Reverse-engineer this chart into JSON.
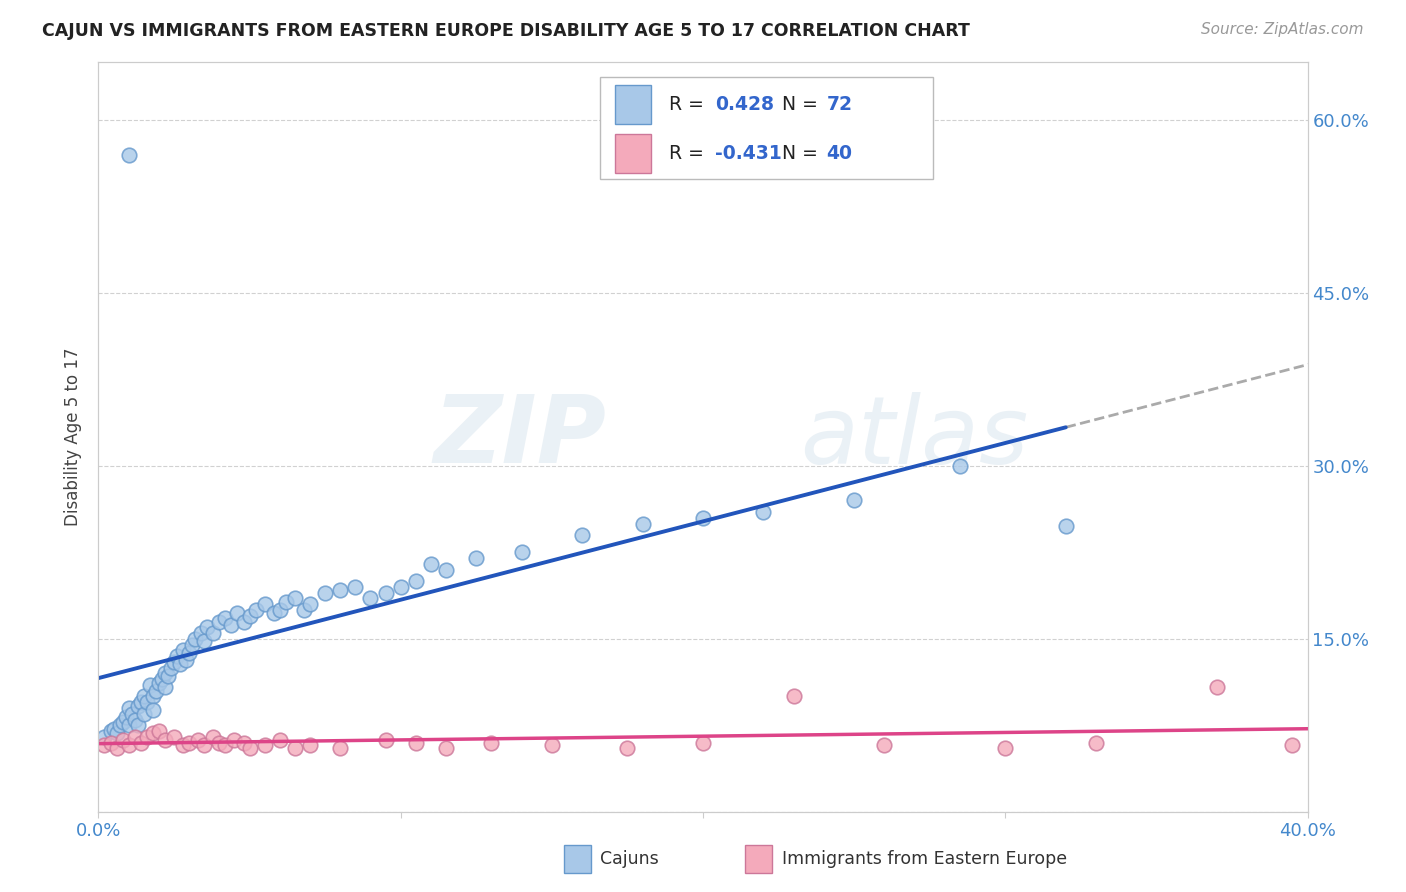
{
  "title": "CAJUN VS IMMIGRANTS FROM EASTERN EUROPE DISABILITY AGE 5 TO 17 CORRELATION CHART",
  "source": "Source: ZipAtlas.com",
  "ylabel": "Disability Age 5 to 17",
  "xlim": [
    0.0,
    0.4
  ],
  "ylim": [
    0.0,
    0.65
  ],
  "grid_color": "#cccccc",
  "background_color": "#ffffff",
  "cajun_color": "#a8c8e8",
  "cajun_edge_color": "#6699cc",
  "immigrant_color": "#f4aabb",
  "immigrant_edge_color": "#cc7799",
  "cajun_line_color": "#2255bb",
  "immigrant_line_color": "#dd4488",
  "trend_extension_color": "#aaaaaa",
  "watermark_zip": "ZIP",
  "watermark_atlas": "atlas",
  "legend_blue_text_color": "#3366cc",
  "legend_black_text_color": "#222222",
  "cajun_scatter_x": [
    0.002,
    0.004,
    0.005,
    0.006,
    0.007,
    0.008,
    0.009,
    0.01,
    0.01,
    0.011,
    0.012,
    0.013,
    0.013,
    0.014,
    0.015,
    0.015,
    0.016,
    0.017,
    0.018,
    0.018,
    0.019,
    0.02,
    0.021,
    0.022,
    0.022,
    0.023,
    0.024,
    0.025,
    0.026,
    0.027,
    0.028,
    0.029,
    0.03,
    0.031,
    0.032,
    0.034,
    0.035,
    0.036,
    0.038,
    0.04,
    0.042,
    0.044,
    0.046,
    0.048,
    0.05,
    0.052,
    0.055,
    0.058,
    0.06,
    0.062,
    0.065,
    0.068,
    0.07,
    0.075,
    0.08,
    0.085,
    0.09,
    0.095,
    0.1,
    0.105,
    0.11,
    0.115,
    0.125,
    0.14,
    0.16,
    0.18,
    0.2,
    0.22,
    0.25,
    0.285,
    0.01,
    0.32
  ],
  "cajun_scatter_y": [
    0.065,
    0.07,
    0.072,
    0.068,
    0.075,
    0.078,
    0.082,
    0.09,
    0.075,
    0.085,
    0.08,
    0.092,
    0.075,
    0.095,
    0.085,
    0.1,
    0.095,
    0.11,
    0.1,
    0.088,
    0.105,
    0.112,
    0.115,
    0.108,
    0.12,
    0.118,
    0.125,
    0.13,
    0.135,
    0.128,
    0.14,
    0.132,
    0.138,
    0.145,
    0.15,
    0.155,
    0.148,
    0.16,
    0.155,
    0.165,
    0.168,
    0.162,
    0.172,
    0.165,
    0.17,
    0.175,
    0.18,
    0.172,
    0.175,
    0.182,
    0.185,
    0.175,
    0.18,
    0.19,
    0.192,
    0.195,
    0.185,
    0.19,
    0.195,
    0.2,
    0.215,
    0.21,
    0.22,
    0.225,
    0.24,
    0.25,
    0.255,
    0.26,
    0.27,
    0.3,
    0.57,
    0.248
  ],
  "immigrant_scatter_x": [
    0.002,
    0.004,
    0.006,
    0.008,
    0.01,
    0.012,
    0.014,
    0.016,
    0.018,
    0.02,
    0.022,
    0.025,
    0.028,
    0.03,
    0.033,
    0.035,
    0.038,
    0.04,
    0.042,
    0.045,
    0.048,
    0.05,
    0.055,
    0.06,
    0.065,
    0.07,
    0.08,
    0.095,
    0.105,
    0.115,
    0.13,
    0.15,
    0.175,
    0.2,
    0.23,
    0.26,
    0.3,
    0.33,
    0.37,
    0.395
  ],
  "immigrant_scatter_y": [
    0.058,
    0.06,
    0.055,
    0.062,
    0.058,
    0.065,
    0.06,
    0.065,
    0.068,
    0.07,
    0.062,
    0.065,
    0.058,
    0.06,
    0.062,
    0.058,
    0.065,
    0.06,
    0.058,
    0.062,
    0.06,
    0.055,
    0.058,
    0.062,
    0.055,
    0.058,
    0.055,
    0.062,
    0.06,
    0.055,
    0.06,
    0.058,
    0.055,
    0.06,
    0.1,
    0.058,
    0.055,
    0.06,
    0.108,
    0.058
  ]
}
